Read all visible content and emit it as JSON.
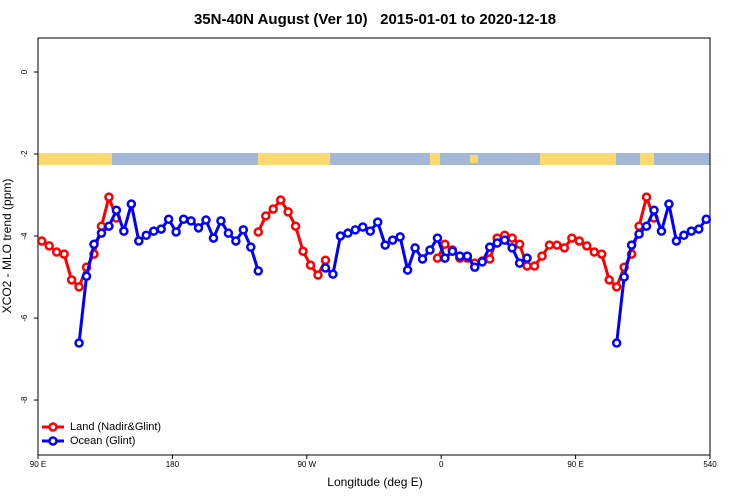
{
  "chart_data": {
    "type": "line",
    "title": "35N-40N August (Ver 10)   2015-01-01 to 2020-12-18",
    "xlabel": "Longitude (deg E)",
    "ylabel": "XCO2 - MLO trend (ppm)",
    "xlim": [
      90,
      540
    ],
    "ylim": [
      -9.34,
      0.83
    ],
    "xticks": [
      {
        "value": 90,
        "label": "90 E"
      },
      180,
      {
        "value": 270,
        "label": "90 W"
      },
      {
        "value": 360,
        "label": "0"
      },
      {
        "value": 450,
        "label": "90 E"
      },
      540
    ],
    "yticks": [
      0,
      -2,
      -4,
      -6,
      -8
    ],
    "legend": "bottom-left",
    "x": [
      92.5,
      97.5,
      102.5,
      107.5,
      112.5,
      117.5,
      122.5,
      127.5,
      132.5,
      137.5,
      142.5,
      147.5,
      152.5,
      157.5,
      162.5,
      167.5,
      172.5,
      177.5,
      182.5,
      187.5,
      192.5,
      197.5,
      202.5,
      207.5,
      212.5,
      217.5,
      222.5,
      227.5,
      232.5,
      237.5,
      242.5,
      247.5,
      252.5,
      257.5,
      262.5,
      267.5,
      272.5,
      277.5,
      282.5,
      287.5,
      292.5,
      297.5,
      302.5,
      307.5,
      312.5,
      317.5,
      322.5,
      327.5,
      332.5,
      337.5,
      342.5,
      347.5,
      352.5,
      357.5,
      362.5,
      367.5,
      372.5,
      377.5,
      382.5,
      387.5,
      392.5,
      397.5,
      402.5,
      407.5,
      412.5,
      417.5,
      422.5,
      427.5,
      432.5,
      437.5,
      442.5,
      447.5,
      452.5,
      457.5,
      462.5,
      467.5,
      472.5,
      477.5,
      482.5,
      487.5,
      492.5,
      497.5,
      502.5,
      507.5,
      512.5,
      517.5,
      522.5,
      527.5,
      532.5,
      537.5
    ],
    "series": [
      {
        "name": "Land (Nadir&Glint)",
        "color": "#ff0000",
        "values": [
          -4.12,
          -4.24,
          -4.39,
          -4.44,
          -5.07,
          -5.24,
          -4.76,
          -4.44,
          -3.76,
          -3.05,
          -3.56,
          null,
          null,
          null,
          null,
          null,
          null,
          null,
          null,
          null,
          null,
          null,
          null,
          null,
          null,
          null,
          null,
          null,
          null,
          -3.9,
          -3.51,
          -3.34,
          -3.12,
          -3.41,
          -3.76,
          -4.37,
          -4.71,
          -4.95,
          -4.59,
          null,
          null,
          null,
          null,
          null,
          null,
          null,
          null,
          null,
          null,
          null,
          null,
          null,
          null,
          -4.54,
          -4.2,
          -4.34,
          -4.54,
          -4.54,
          -4.66,
          -4.61,
          -4.56,
          -4.05,
          -3.98,
          -4.05,
          -4.2,
          -4.73,
          -4.73,
          -4.49,
          -4.22,
          -4.22,
          -4.29,
          -4.05,
          -4.12,
          -4.24,
          -4.39,
          -4.44,
          -5.07,
          -5.24,
          -4.76,
          -4.44,
          -3.76,
          -3.05,
          -3.56,
          null,
          null,
          null,
          null,
          null,
          null,
          null
        ]
      },
      {
        "name": "Ocean (Glint)",
        "color": "#0000ff",
        "values": [
          null,
          null,
          null,
          null,
          null,
          -6.61,
          -4.98,
          -4.2,
          -3.93,
          -3.76,
          -3.37,
          -3.88,
          -3.22,
          -4.12,
          -3.98,
          -3.88,
          -3.83,
          -3.59,
          -3.9,
          -3.59,
          -3.63,
          -3.8,
          -3.61,
          -4.05,
          -3.63,
          -3.93,
          -4.12,
          -3.85,
          -4.27,
          -4.85,
          null,
          null,
          null,
          null,
          null,
          null,
          null,
          null,
          -4.78,
          -4.93,
          -4.0,
          -3.93,
          -3.85,
          -3.78,
          -3.88,
          -3.66,
          -4.22,
          -4.1,
          -4.02,
          -4.83,
          -4.29,
          -4.56,
          -4.34,
          -4.05,
          -4.54,
          -4.37,
          -4.49,
          -4.49,
          -4.76,
          -4.63,
          -4.27,
          -4.17,
          -4.1,
          -4.29,
          -4.66,
          -4.54,
          null,
          null,
          null,
          null,
          null,
          null,
          null,
          null,
          null,
          null,
          null,
          -6.61,
          -5.0,
          -4.22,
          -3.95,
          -3.76,
          -3.37,
          -3.88,
          -3.22,
          -4.12,
          -3.98,
          -3.88,
          -3.83,
          -3.59
        ]
      }
    ]
  }
}
